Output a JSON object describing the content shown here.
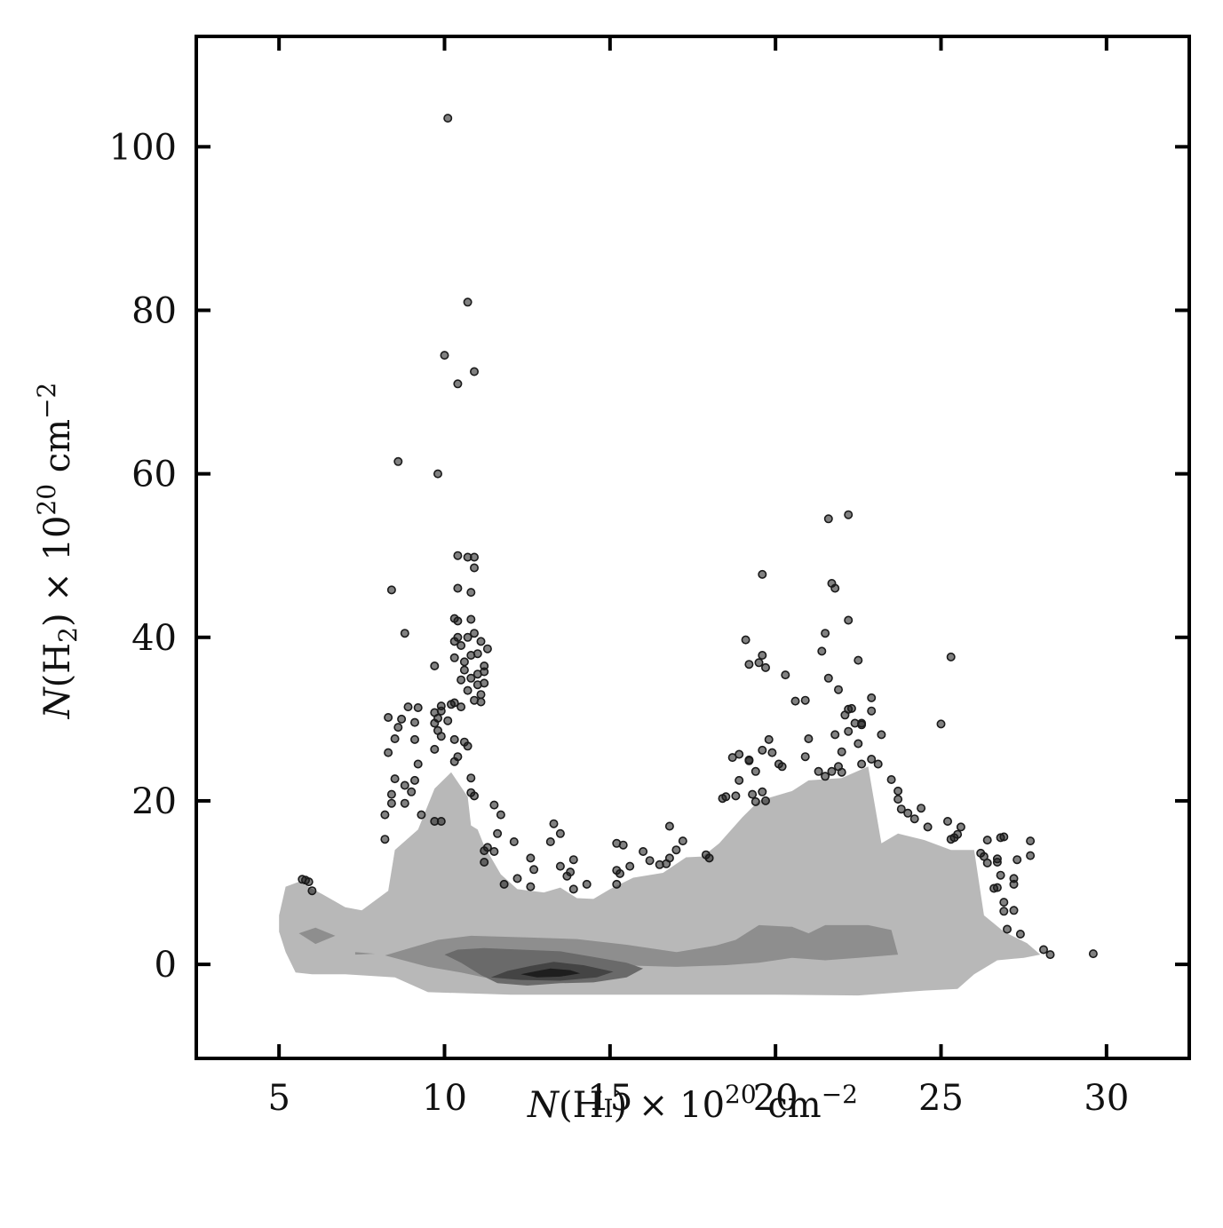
{
  "chart_data": {
    "type": "scatter",
    "title": "",
    "xlabel": {
      "pre": "N",
      "mid": "(H",
      "small": "I",
      "post": ") × 10",
      "exp1": "20",
      "unit": " cm",
      "exp2": "−2"
    },
    "ylabel": {
      "pre": "N",
      "mid": "(H",
      "sub": "2",
      "post": ") × 10",
      "exp1": "20",
      "unit": " cm",
      "exp2": "−2"
    },
    "xlim": [
      2.5,
      32.5
    ],
    "ylim": [
      -11.5,
      113.5
    ],
    "xticks": [
      5,
      10,
      15,
      20,
      25,
      30
    ],
    "xtick_labels": [
      "5",
      "10",
      "15",
      "20",
      "25",
      "30"
    ],
    "yticks": [
      0,
      20,
      40,
      60,
      80,
      100
    ],
    "ytick_labels": [
      "0",
      "20",
      "40",
      "60",
      "80",
      "100"
    ],
    "grid": false,
    "colors": {
      "contour_levels": [
        "#b8b8b8",
        "#8e8e8e",
        "#6a6a6a",
        "#444444",
        "#1e1e1e"
      ],
      "points": "#1a1a1a"
    },
    "contours": [
      {
        "level": 1,
        "polygon": [
          [
            5,
            6
          ],
          [
            5.2,
            9.5
          ],
          [
            5.6,
            10.1
          ],
          [
            6.3,
            8.6
          ],
          [
            7,
            7
          ],
          [
            7.5,
            6.6
          ],
          [
            8.3,
            9
          ],
          [
            8.5,
            14
          ],
          [
            9.2,
            16.5
          ],
          [
            9.7,
            21.5
          ],
          [
            10.2,
            23.5
          ],
          [
            10.7,
            20.5
          ],
          [
            10.8,
            17
          ],
          [
            11,
            16.5
          ],
          [
            11.2,
            14.5
          ],
          [
            11.7,
            11
          ],
          [
            12.2,
            9.2
          ],
          [
            13,
            8.8
          ],
          [
            13.5,
            9.4
          ],
          [
            14,
            8.1
          ],
          [
            14.5,
            8
          ],
          [
            15,
            9.2
          ],
          [
            15.7,
            10.6
          ],
          [
            16.6,
            11.2
          ],
          [
            17.3,
            13.1
          ],
          [
            17.8,
            13.2
          ],
          [
            18.3,
            14.8
          ],
          [
            19,
            18
          ],
          [
            19.5,
            20
          ],
          [
            20.5,
            21.2
          ],
          [
            21,
            22.5
          ],
          [
            22,
            22.8
          ],
          [
            22.8,
            24.2
          ],
          [
            23.2,
            14.8
          ],
          [
            23.7,
            16
          ],
          [
            24.5,
            15.2
          ],
          [
            25.3,
            14
          ],
          [
            26,
            14
          ],
          [
            26.3,
            6
          ],
          [
            26.9,
            4
          ],
          [
            27.6,
            2.6
          ],
          [
            28,
            1.2
          ],
          [
            27.5,
            0.8
          ],
          [
            26.7,
            0.5
          ],
          [
            26,
            -1.2
          ],
          [
            25.5,
            -3
          ],
          [
            24.5,
            -3.2
          ],
          [
            22.5,
            -3.8
          ],
          [
            20,
            -3.7
          ],
          [
            17,
            -3.7
          ],
          [
            14,
            -3.7
          ],
          [
            12,
            -3.7
          ],
          [
            9.5,
            -3.4
          ],
          [
            8.5,
            -1.6
          ],
          [
            7,
            -1.2
          ],
          [
            6,
            -1.2
          ],
          [
            5.5,
            -1
          ],
          [
            5.2,
            1.5
          ],
          [
            5,
            4
          ]
        ]
      },
      {
        "level": 2,
        "polygon": [
          [
            5.6,
            3.8
          ],
          [
            6.1,
            4.5
          ],
          [
            6.7,
            3.5
          ],
          [
            6.1,
            2.5
          ]
        ]
      },
      {
        "level": 2,
        "polygon": [
          [
            7.3,
            1.5
          ],
          [
            7.9,
            1.3
          ],
          [
            7.3,
            1.2
          ]
        ]
      },
      {
        "level": 2,
        "polygon": [
          [
            8.2,
            1.1
          ],
          [
            9.8,
            3
          ],
          [
            10.8,
            3.5
          ],
          [
            12.5,
            3.3
          ],
          [
            14,
            3.1
          ],
          [
            15.5,
            2.4
          ],
          [
            17,
            1.5
          ],
          [
            18.2,
            2.3
          ],
          [
            18.8,
            3
          ],
          [
            19.5,
            4.8
          ],
          [
            20.5,
            4.6
          ],
          [
            21,
            3.8
          ],
          [
            21.5,
            4.8
          ],
          [
            22.8,
            4.8
          ],
          [
            23.5,
            4.2
          ],
          [
            23.7,
            1.2
          ],
          [
            22.5,
            0.8
          ],
          [
            21.5,
            0.5
          ],
          [
            20.5,
            0.8
          ],
          [
            19.5,
            0.2
          ],
          [
            18.5,
            -0.1
          ],
          [
            17,
            -0.3
          ],
          [
            15.2,
            -0.1
          ],
          [
            14.5,
            -0.6
          ],
          [
            13.5,
            -1.1
          ],
          [
            12.5,
            -1.7
          ],
          [
            11.2,
            -1.6
          ],
          [
            10.5,
            -1
          ],
          [
            9.5,
            -0.3
          ]
        ]
      },
      {
        "level": 3,
        "polygon": [
          [
            10,
            1.2
          ],
          [
            10.4,
            1.8
          ],
          [
            11.2,
            2
          ],
          [
            12.3,
            1.8
          ],
          [
            13.5,
            1.6
          ],
          [
            14.5,
            0.9
          ],
          [
            15.5,
            0.2
          ],
          [
            16,
            -0.5
          ],
          [
            15.5,
            -1.6
          ],
          [
            14.5,
            -2.2
          ],
          [
            13.5,
            -2.3
          ],
          [
            12.5,
            -2.6
          ],
          [
            11.6,
            -2.3
          ],
          [
            11.1,
            -1.3
          ],
          [
            10.5,
            0.2
          ]
        ]
      },
      {
        "level": 4,
        "polygon": [
          [
            11.4,
            -1.6
          ],
          [
            11.9,
            -0.8
          ],
          [
            12.6,
            -0.2
          ],
          [
            13.3,
            0.3
          ],
          [
            14.2,
            -0.1
          ],
          [
            15.1,
            -0.9
          ],
          [
            14.6,
            -1.6
          ],
          [
            13.5,
            -2
          ],
          [
            12.3,
            -1.9
          ]
        ]
      },
      {
        "level": 5,
        "polygon": [
          [
            12.3,
            -1.2
          ],
          [
            12.8,
            -0.8
          ],
          [
            13.2,
            -0.5
          ],
          [
            13.8,
            -0.7
          ],
          [
            14.1,
            -1.1
          ],
          [
            13.5,
            -1.5
          ],
          [
            12.8,
            -1.6
          ]
        ]
      }
    ],
    "points": [
      [
        10.1,
        103.5
      ],
      [
        10.7,
        81
      ],
      [
        10,
        74.5
      ],
      [
        10.9,
        72.5
      ],
      [
        10.4,
        71
      ],
      [
        8.6,
        61.5
      ],
      [
        9.8,
        60
      ],
      [
        8.4,
        45.8
      ],
      [
        8.8,
        40.5
      ],
      [
        9.7,
        36.5
      ],
      [
        10.4,
        50
      ],
      [
        10.7,
        49.8
      ],
      [
        10.9,
        49.8
      ],
      [
        10.9,
        48.5
      ],
      [
        10.4,
        46
      ],
      [
        10.8,
        45.5
      ],
      [
        10.3,
        42.3
      ],
      [
        10.4,
        42
      ],
      [
        10.8,
        42.2
      ],
      [
        10.4,
        40
      ],
      [
        10.5,
        39
      ],
      [
        10.7,
        40
      ],
      [
        10.9,
        40.5
      ],
      [
        11.1,
        39.5
      ],
      [
        10.3,
        39.5
      ],
      [
        11.3,
        38.6
      ],
      [
        10.3,
        37.5
      ],
      [
        10.6,
        37
      ],
      [
        10.8,
        37.8
      ],
      [
        11,
        38
      ],
      [
        11.2,
        36.5
      ],
      [
        10.6,
        36
      ],
      [
        11,
        35.5
      ],
      [
        11.2,
        35.8
      ],
      [
        10.5,
        34.8
      ],
      [
        10.8,
        35
      ],
      [
        11,
        34.2
      ],
      [
        11.2,
        34.4
      ],
      [
        10.7,
        33.5
      ],
      [
        11.1,
        33
      ],
      [
        10.9,
        32.3
      ],
      [
        10.3,
        32
      ],
      [
        10.2,
        31.8
      ],
      [
        10.5,
        31.5
      ],
      [
        11.1,
        32.1
      ],
      [
        9.9,
        31.6
      ],
      [
        9.9,
        31
      ],
      [
        9.7,
        30.8
      ],
      [
        9.8,
        30.1
      ],
      [
        10.1,
        29.8
      ],
      [
        9.7,
        29.5
      ],
      [
        9.8,
        28.6
      ],
      [
        9.9,
        27.9
      ],
      [
        10.3,
        27.5
      ],
      [
        10.6,
        27.2
      ],
      [
        10.7,
        26.7
      ],
      [
        9.7,
        26.3
      ],
      [
        10.4,
        25.4
      ],
      [
        10.3,
        24.8
      ],
      [
        10.8,
        22.8
      ],
      [
        10.8,
        21
      ],
      [
        10.9,
        20.6
      ],
      [
        8.3,
        30.2
      ],
      [
        8.7,
        30
      ],
      [
        9.1,
        29.6
      ],
      [
        9.2,
        31.4
      ],
      [
        8.9,
        31.5
      ],
      [
        8.6,
        29
      ],
      [
        8.5,
        27.6
      ],
      [
        9.1,
        27.5
      ],
      [
        8.3,
        25.9
      ],
      [
        9.2,
        24.5
      ],
      [
        8.5,
        22.7
      ],
      [
        8.8,
        21.9
      ],
      [
        9.1,
        22.5
      ],
      [
        9,
        21.1
      ],
      [
        8.8,
        19.7
      ],
      [
        8.4,
        20.8
      ],
      [
        8.4,
        19.7
      ],
      [
        8.2,
        18.3
      ],
      [
        8.2,
        15.3
      ],
      [
        9.7,
        17.5
      ],
      [
        9.9,
        17.5
      ],
      [
        9.3,
        18.3
      ],
      [
        11.5,
        19.5
      ],
      [
        11.7,
        18.3
      ],
      [
        12.1,
        15
      ],
      [
        11.6,
        16
      ],
      [
        11.3,
        14.3
      ],
      [
        11.2,
        13.9
      ],
      [
        11.5,
        13.8
      ],
      [
        11.2,
        12.5
      ],
      [
        11.8,
        9.8
      ],
      [
        12.2,
        10.5
      ],
      [
        12.6,
        13
      ],
      [
        12.7,
        11.6
      ],
      [
        12.6,
        9.5
      ],
      [
        13.3,
        17.2
      ],
      [
        13.5,
        16
      ],
      [
        13.2,
        15
      ],
      [
        13.5,
        12
      ],
      [
        13.9,
        12.8
      ],
      [
        13.8,
        11.3
      ],
      [
        13.7,
        10.8
      ],
      [
        14.3,
        9.8
      ],
      [
        13.9,
        9.2
      ],
      [
        15.2,
        14.8
      ],
      [
        15.4,
        14.6
      ],
      [
        15.2,
        11.5
      ],
      [
        15.6,
        12
      ],
      [
        15.3,
        11.1
      ],
      [
        15.2,
        9.8
      ],
      [
        16,
        13.8
      ],
      [
        16.2,
        12.7
      ],
      [
        16.8,
        16.9
      ],
      [
        17.2,
        15.1
      ],
      [
        16.7,
        12.3
      ],
      [
        16.5,
        12.2
      ],
      [
        17,
        14
      ],
      [
        16.8,
        13
      ],
      [
        17.9,
        13.4
      ],
      [
        18,
        13
      ],
      [
        18.4,
        20.3
      ],
      [
        18.5,
        20.5
      ],
      [
        18.8,
        20.6
      ],
      [
        18.7,
        25.3
      ],
      [
        18.9,
        25.7
      ],
      [
        19.2,
        25
      ],
      [
        18.9,
        22.5
      ],
      [
        19.2,
        24.9
      ],
      [
        19.1,
        39.7
      ],
      [
        19.2,
        36.7
      ],
      [
        19.6,
        37.8
      ],
      [
        19.5,
        36.9
      ],
      [
        19.7,
        36.3
      ],
      [
        19.4,
        23.6
      ],
      [
        19.6,
        26.2
      ],
      [
        19.4,
        19.9
      ],
      [
        19.6,
        47.7
      ],
      [
        19.8,
        27.5
      ],
      [
        19.9,
        25.9
      ],
      [
        19.3,
        20.8
      ],
      [
        19.6,
        21.1
      ],
      [
        20.1,
        24.5
      ],
      [
        20.2,
        24.2
      ],
      [
        19.7,
        20
      ],
      [
        20.3,
        35.4
      ],
      [
        20.6,
        32.2
      ],
      [
        20.9,
        32.3
      ],
      [
        20.9,
        25.4
      ],
      [
        21,
        27.6
      ],
      [
        21.4,
        38.3
      ],
      [
        21.5,
        40.5
      ],
      [
        21.6,
        35
      ],
      [
        21.9,
        33.6
      ],
      [
        21.3,
        23.6
      ],
      [
        21.5,
        23
      ],
      [
        21.7,
        23.6
      ],
      [
        21.9,
        24.2
      ],
      [
        22,
        23.5
      ],
      [
        21.6,
        54.5
      ],
      [
        22.2,
        55
      ],
      [
        21.7,
        46.6
      ],
      [
        21.8,
        46
      ],
      [
        22.2,
        42.1
      ],
      [
        22.5,
        37.2
      ],
      [
        22.2,
        31.2
      ],
      [
        22.3,
        31.3
      ],
      [
        22.1,
        30.5
      ],
      [
        22.4,
        29.5
      ],
      [
        22.6,
        29.3
      ],
      [
        22.2,
        28.5
      ],
      [
        21.8,
        28.1
      ],
      [
        22.6,
        29.5
      ],
      [
        22.5,
        27
      ],
      [
        22.6,
        24.5
      ],
      [
        22.9,
        31
      ],
      [
        22.9,
        32.6
      ],
      [
        22.9,
        25.1
      ],
      [
        23.1,
        24.5
      ],
      [
        23.2,
        28.1
      ],
      [
        22,
        26
      ],
      [
        23.5,
        22.6
      ],
      [
        23.7,
        20.2
      ],
      [
        23.7,
        21.2
      ],
      [
        23.8,
        19
      ],
      [
        24,
        18.5
      ],
      [
        24.4,
        19.1
      ],
      [
        24.2,
        17.8
      ],
      [
        24.6,
        16.8
      ],
      [
        25,
        29.4
      ],
      [
        25.3,
        37.6
      ],
      [
        25.2,
        17.5
      ],
      [
        25.4,
        15.5
      ],
      [
        25.5,
        15.9
      ],
      [
        25.3,
        15.3
      ],
      [
        25.6,
        16.8
      ],
      [
        26.2,
        13.6
      ],
      [
        26.3,
        13.2
      ],
      [
        26.4,
        15.2
      ],
      [
        26.4,
        12.4
      ],
      [
        26.6,
        9.3
      ],
      [
        26.7,
        12.9
      ],
      [
        26.7,
        9.4
      ],
      [
        26.8,
        10.9
      ],
      [
        26.9,
        7.6
      ],
      [
        26.9,
        6.5
      ],
      [
        26.8,
        15.5
      ],
      [
        26.9,
        15.6
      ],
      [
        26.7,
        12.5
      ],
      [
        27,
        4.3
      ],
      [
        27.2,
        10.5
      ],
      [
        27.2,
        9.8
      ],
      [
        27.2,
        6.6
      ],
      [
        27.3,
        12.8
      ],
      [
        27.4,
        3.7
      ],
      [
        27.7,
        15.1
      ],
      [
        27.7,
        13.3
      ],
      [
        28.1,
        1.8
      ],
      [
        28.3,
        1.2
      ],
      [
        29.6,
        1.3
      ],
      [
        5.7,
        10.4
      ],
      [
        5.8,
        10.3
      ],
      [
        5.9,
        10.1
      ],
      [
        6,
        9
      ]
    ]
  }
}
